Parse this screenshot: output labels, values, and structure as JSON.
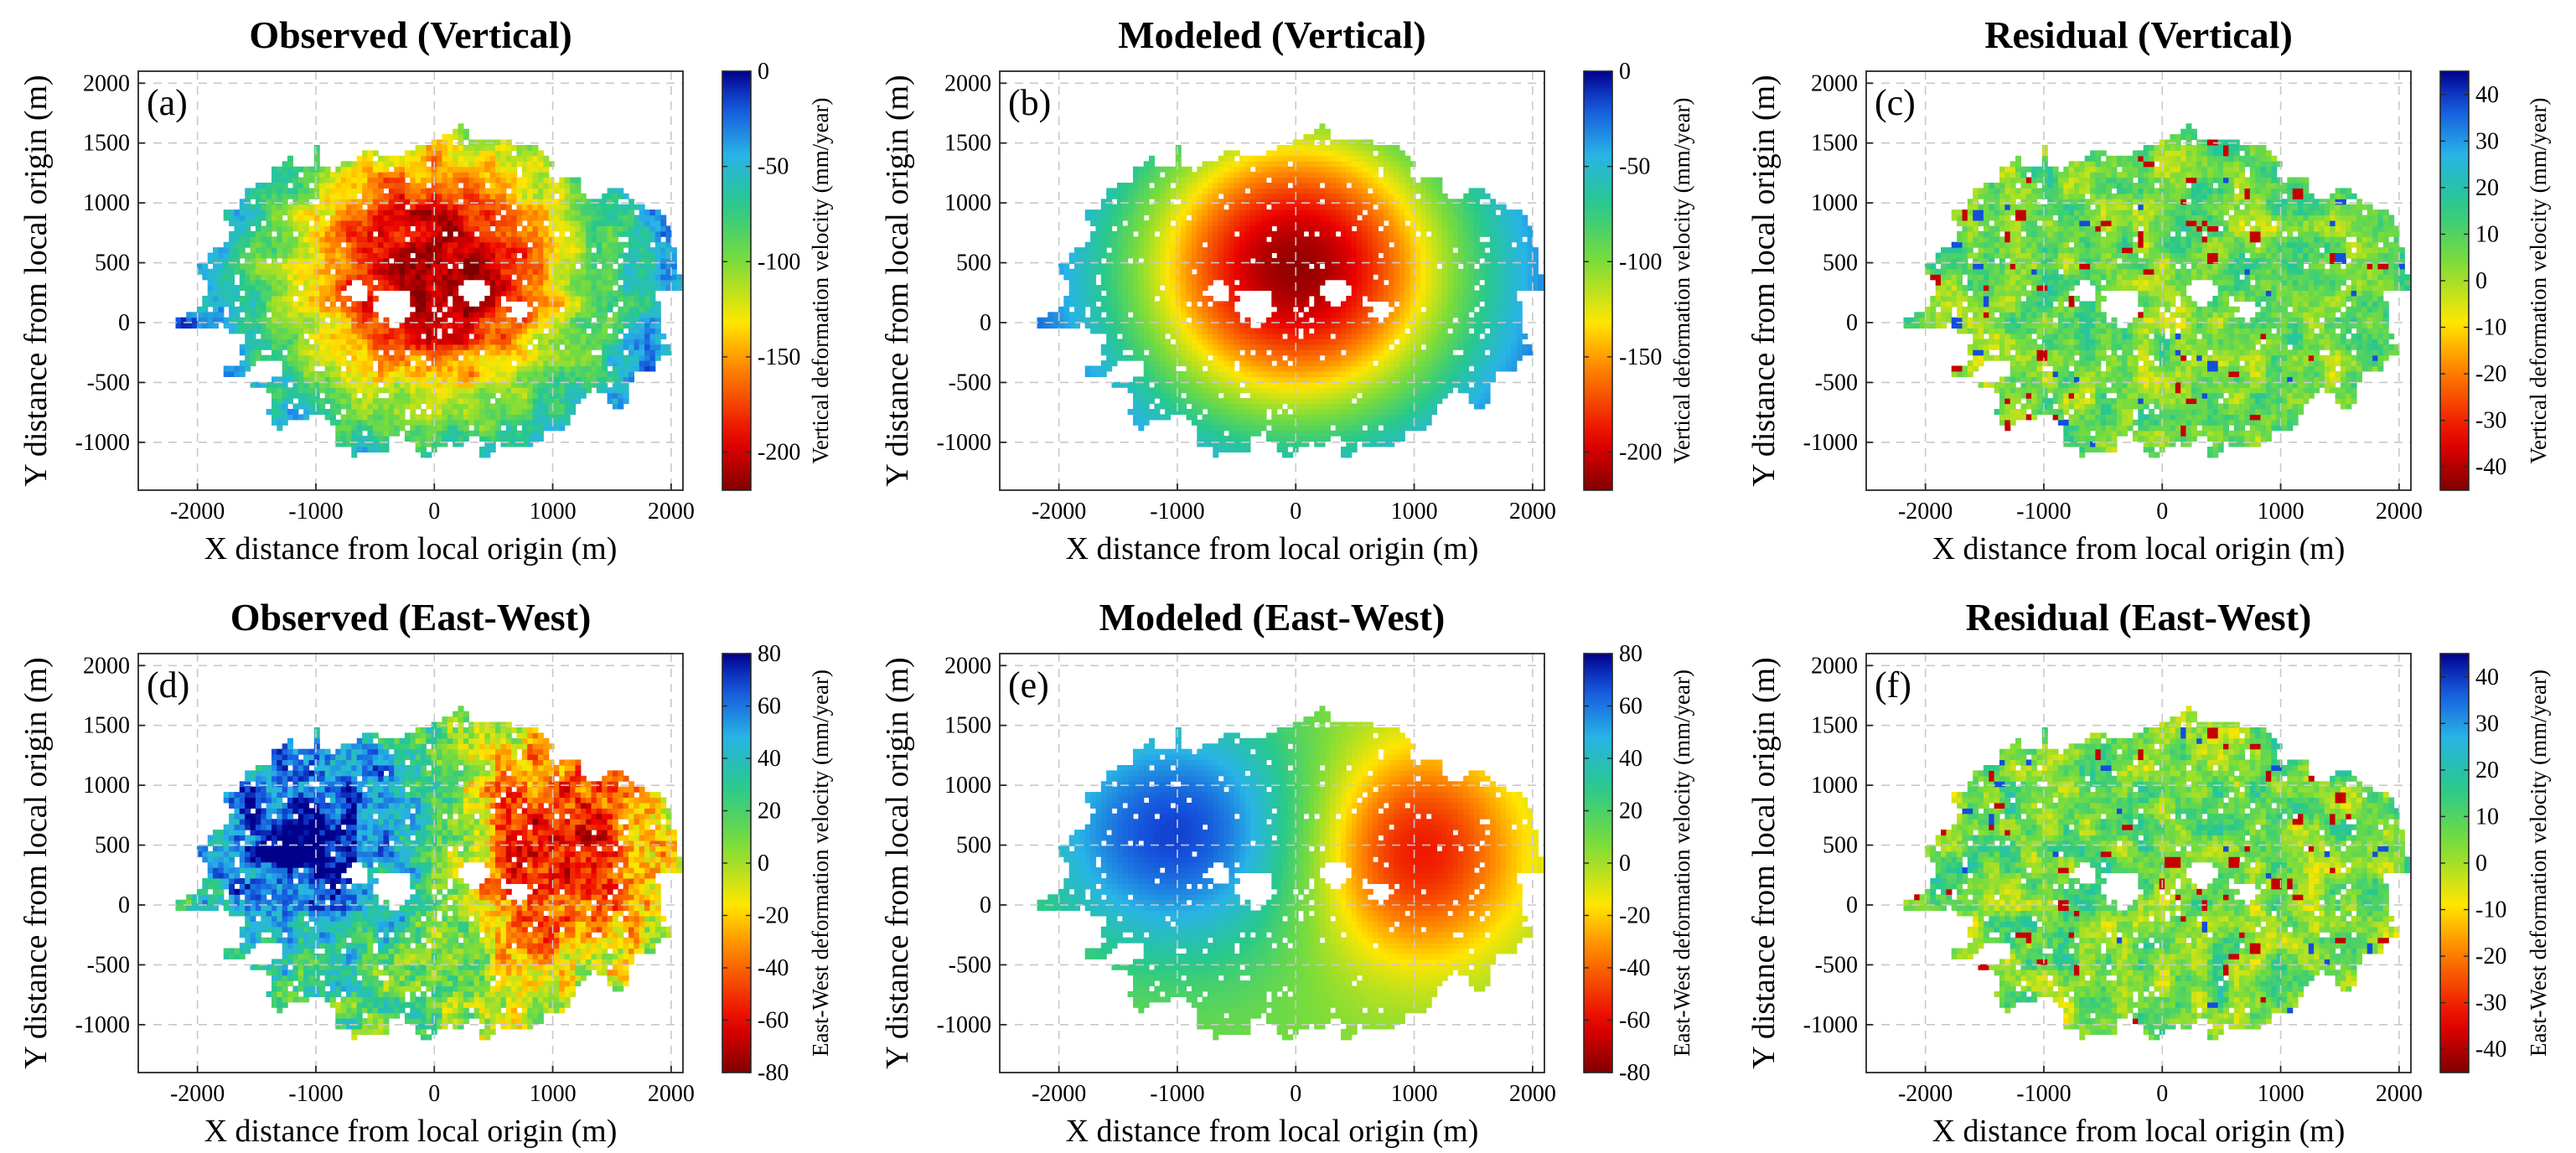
{
  "chart_data": [
    {
      "id": "a",
      "type": "heatmap",
      "panel_label": "(a)",
      "title": "Observed (Vertical)",
      "xlabel": "X distance from local origin (m)",
      "ylabel": "Y distance from local origin (m)",
      "xlim": [
        -2500,
        2100
      ],
      "ylim": [
        -1400,
        2100
      ],
      "xticks": [
        -2000,
        -1000,
        0,
        1000,
        2000
      ],
      "yticks": [
        -1000,
        -500,
        0,
        500,
        1000,
        1500,
        2000
      ],
      "colorbar": {
        "label": "Vertical deformation velocity (mm/year)",
        "range": [
          -220,
          0
        ],
        "ticks": [
          0,
          -50,
          -100,
          -150,
          -200
        ],
        "colormap": "jet-reversed"
      },
      "field": {
        "model": "subsidence bowl",
        "center": [
          0,
          450
        ],
        "peak_value": -215,
        "decay_radius_m": 1650,
        "noise": "high"
      }
    },
    {
      "id": "b",
      "type": "heatmap",
      "panel_label": "(b)",
      "title": "Modeled (Vertical)",
      "xlabel": "X distance from local origin (m)",
      "ylabel": "Y distance from local origin (m)",
      "xlim": [
        -2500,
        2100
      ],
      "ylim": [
        -1400,
        2100
      ],
      "xticks": [
        -2000,
        -1000,
        0,
        1000,
        2000
      ],
      "yticks": [
        -1000,
        -500,
        0,
        500,
        1000,
        1500,
        2000
      ],
      "colorbar": {
        "label": "Vertical deformation velocity (mm/year)",
        "range": [
          -220,
          0
        ],
        "ticks": [
          0,
          -50,
          -100,
          -150,
          -200
        ],
        "colormap": "jet-reversed"
      },
      "field": {
        "model": "subsidence bowl",
        "center": [
          0,
          450
        ],
        "peak_value": -215,
        "decay_radius_m": 1650,
        "noise": "none"
      }
    },
    {
      "id": "c",
      "type": "heatmap",
      "panel_label": "(c)",
      "title": "Residual (Vertical)",
      "xlabel": "X distance from local origin (m)",
      "ylabel": "Y distance from local origin (m)",
      "xlim": [
        -2500,
        2100
      ],
      "ylim": [
        -1400,
        2100
      ],
      "xticks": [
        -2000,
        -1000,
        0,
        1000,
        2000
      ],
      "yticks": [
        -1000,
        -500,
        0,
        500,
        1000,
        1500,
        2000
      ],
      "colorbar": {
        "label": "Vertical deformation velocity (mm/year)",
        "range": [
          -45,
          45
        ],
        "ticks": [
          40,
          30,
          20,
          10,
          0,
          -10,
          -20,
          -30,
          -40
        ],
        "colormap": "jet-reversed"
      },
      "field": {
        "model": "residual noise",
        "mean": 6,
        "spread": 10
      }
    },
    {
      "id": "d",
      "type": "heatmap",
      "panel_label": "(d)",
      "title": "Observed (East-West)",
      "xlabel": "X distance from local origin (m)",
      "ylabel": "Y distance from local origin (m)",
      "xlim": [
        -2500,
        2100
      ],
      "ylim": [
        -1400,
        2100
      ],
      "xticks": [
        -2000,
        -1000,
        0,
        1000,
        2000
      ],
      "yticks": [
        -1000,
        -500,
        0,
        500,
        1000,
        1500,
        2000
      ],
      "colorbar": {
        "label": "East-West deformation velocity (mm/year)",
        "range": [
          -80,
          80
        ],
        "ticks": [
          80,
          60,
          40,
          20,
          0,
          -20,
          -40,
          -60,
          -80
        ],
        "colormap": "jet-reversed"
      },
      "field": {
        "model": "east-west dipole",
        "west_lobe": [
          -1000,
          600
        ],
        "east_lobe": [
          1000,
          450
        ],
        "amplitude": 72,
        "noise": "high"
      }
    },
    {
      "id": "e",
      "type": "heatmap",
      "panel_label": "(e)",
      "title": "Modeled (East-West)",
      "xlabel": "X distance from local origin (m)",
      "ylabel": "Y distance from local origin (m)",
      "xlim": [
        -2500,
        2100
      ],
      "ylim": [
        -1400,
        2100
      ],
      "xticks": [
        -2000,
        -1000,
        0,
        1000,
        2000
      ],
      "yticks": [
        -1000,
        -500,
        0,
        500,
        1000,
        1500,
        2000
      ],
      "colorbar": {
        "label": "East-West deformation velocity (mm/year)",
        "range": [
          -80,
          80
        ],
        "ticks": [
          80,
          60,
          40,
          20,
          0,
          -20,
          -40,
          -60,
          -80
        ],
        "colormap": "jet-reversed"
      },
      "field": {
        "model": "east-west dipole",
        "west_lobe": [
          -1000,
          600
        ],
        "east_lobe": [
          1000,
          450
        ],
        "amplitude": 62,
        "noise": "none"
      }
    },
    {
      "id": "f",
      "type": "heatmap",
      "panel_label": "(f)",
      "title": "Residual (East-West)",
      "xlabel": "X distance from local origin (m)",
      "ylabel": "Y distance from local origin (m)",
      "xlim": [
        -2500,
        2100
      ],
      "ylim": [
        -1400,
        2100
      ],
      "xticks": [
        -2000,
        -1000,
        0,
        1000,
        2000
      ],
      "yticks": [
        -1000,
        -500,
        0,
        500,
        1000,
        1500,
        2000
      ],
      "colorbar": {
        "label": "East-West deformation velocity (mm/year)",
        "range": [
          -45,
          45
        ],
        "ticks": [
          40,
          30,
          20,
          10,
          0,
          -10,
          -20,
          -30,
          -40
        ],
        "colormap": "jet-reversed"
      },
      "field": {
        "model": "residual noise",
        "mean": 6,
        "spread": 11
      }
    }
  ]
}
